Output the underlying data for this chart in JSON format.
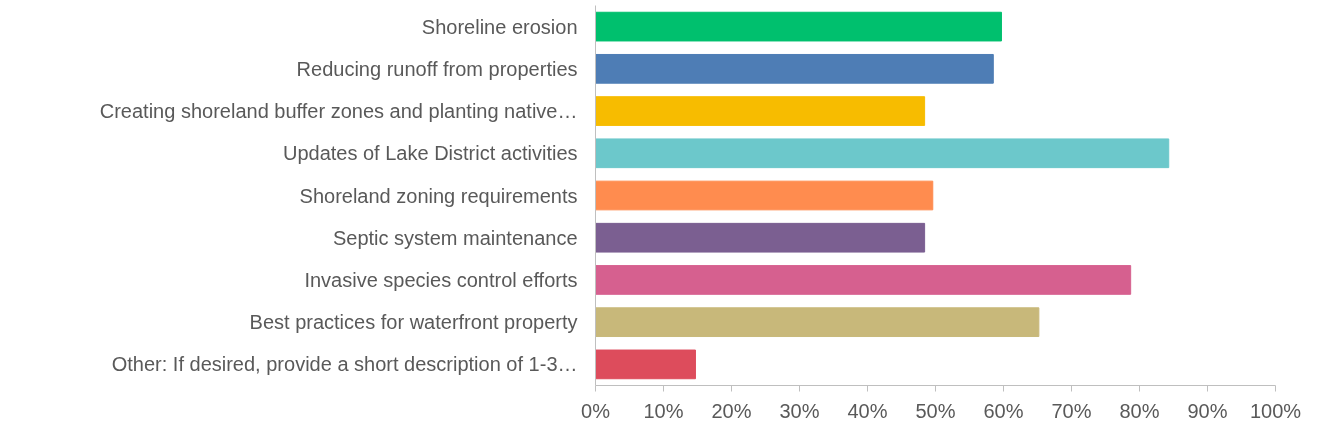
{
  "chart_data": {
    "type": "bar",
    "orientation": "horizontal",
    "categories": [
      "Shoreline erosion",
      "Reducing runoff from properties",
      "Creating shoreland buffer zones and planting native…",
      "Updates of Lake District activities",
      "Shoreland zoning requirements",
      "Septic system maintenance",
      "Invasive species control efforts",
      "Best practices for waterfront property",
      "Other: If desired, provide a short description of 1-3…"
    ],
    "values": [
      59.7,
      58.5,
      48.4,
      84.3,
      49.6,
      48.4,
      78.7,
      65.2,
      14.7
    ],
    "colors": [
      "#00c06e",
      "#4e7db5",
      "#f7bc00",
      "#6cc8cb",
      "#ff8c4f",
      "#7b5f91",
      "#d6608f",
      "#c8b87a",
      "#dd4c5c"
    ],
    "xlim": [
      0,
      100
    ],
    "xticks": [
      {
        "value": 0,
        "label": "0%"
      },
      {
        "value": 10,
        "label": "10%"
      },
      {
        "value": 20,
        "label": "20%"
      },
      {
        "value": 30,
        "label": "30%"
      },
      {
        "value": 40,
        "label": "40%"
      },
      {
        "value": 50,
        "label": "50%"
      },
      {
        "value": 60,
        "label": "60%"
      },
      {
        "value": 70,
        "label": "70%"
      },
      {
        "value": 80,
        "label": "80%"
      },
      {
        "value": 90,
        "label": "90%"
      },
      {
        "value": 100,
        "label": "100%"
      }
    ],
    "grid": false
  }
}
